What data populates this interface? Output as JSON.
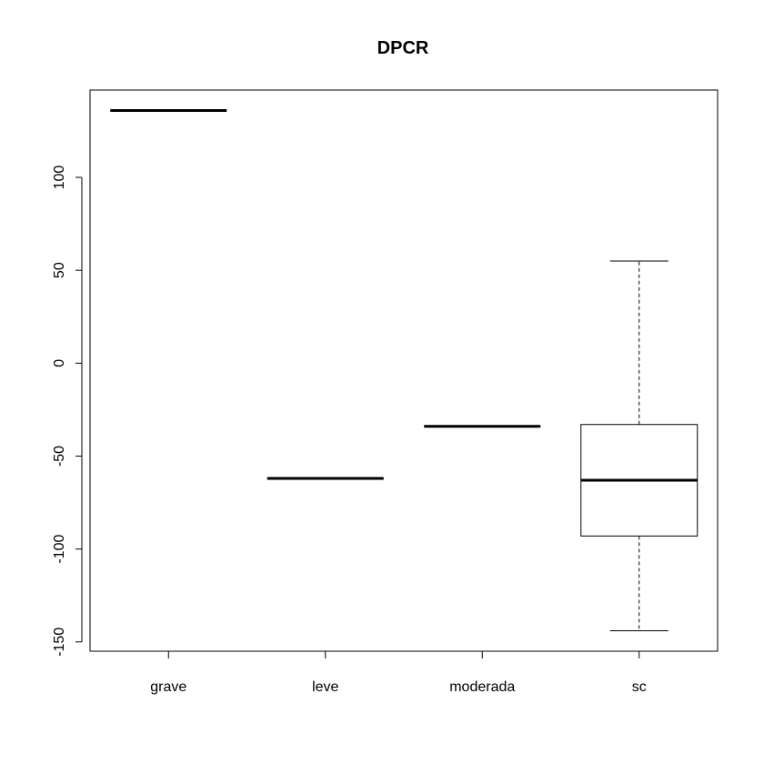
{
  "chart_data": {
    "type": "boxplot",
    "title": "DPCR",
    "xlabel": "",
    "ylabel": "",
    "categories": [
      "grave",
      "leve",
      "moderada",
      "sc"
    ],
    "yticks": [
      -150,
      -100,
      -50,
      0,
      50,
      100
    ],
    "ytick_labels": [
      "-150",
      "-100",
      "-50",
      "0",
      "50",
      "100"
    ],
    "ylim": [
      -155,
      147
    ],
    "grid": false,
    "boxes": [
      {
        "name": "grave",
        "min": 136,
        "q1": 136,
        "median": 136,
        "q3": 136,
        "max": 136
      },
      {
        "name": "leve",
        "min": -62,
        "q1": -62,
        "median": -62,
        "q3": -62,
        "max": -62
      },
      {
        "name": "moderada",
        "min": -34,
        "q1": -34,
        "median": -34,
        "q3": -34,
        "max": -34
      },
      {
        "name": "sc",
        "min": -144,
        "q1": -93,
        "median": -63,
        "q3": -33,
        "max": 55
      }
    ]
  }
}
